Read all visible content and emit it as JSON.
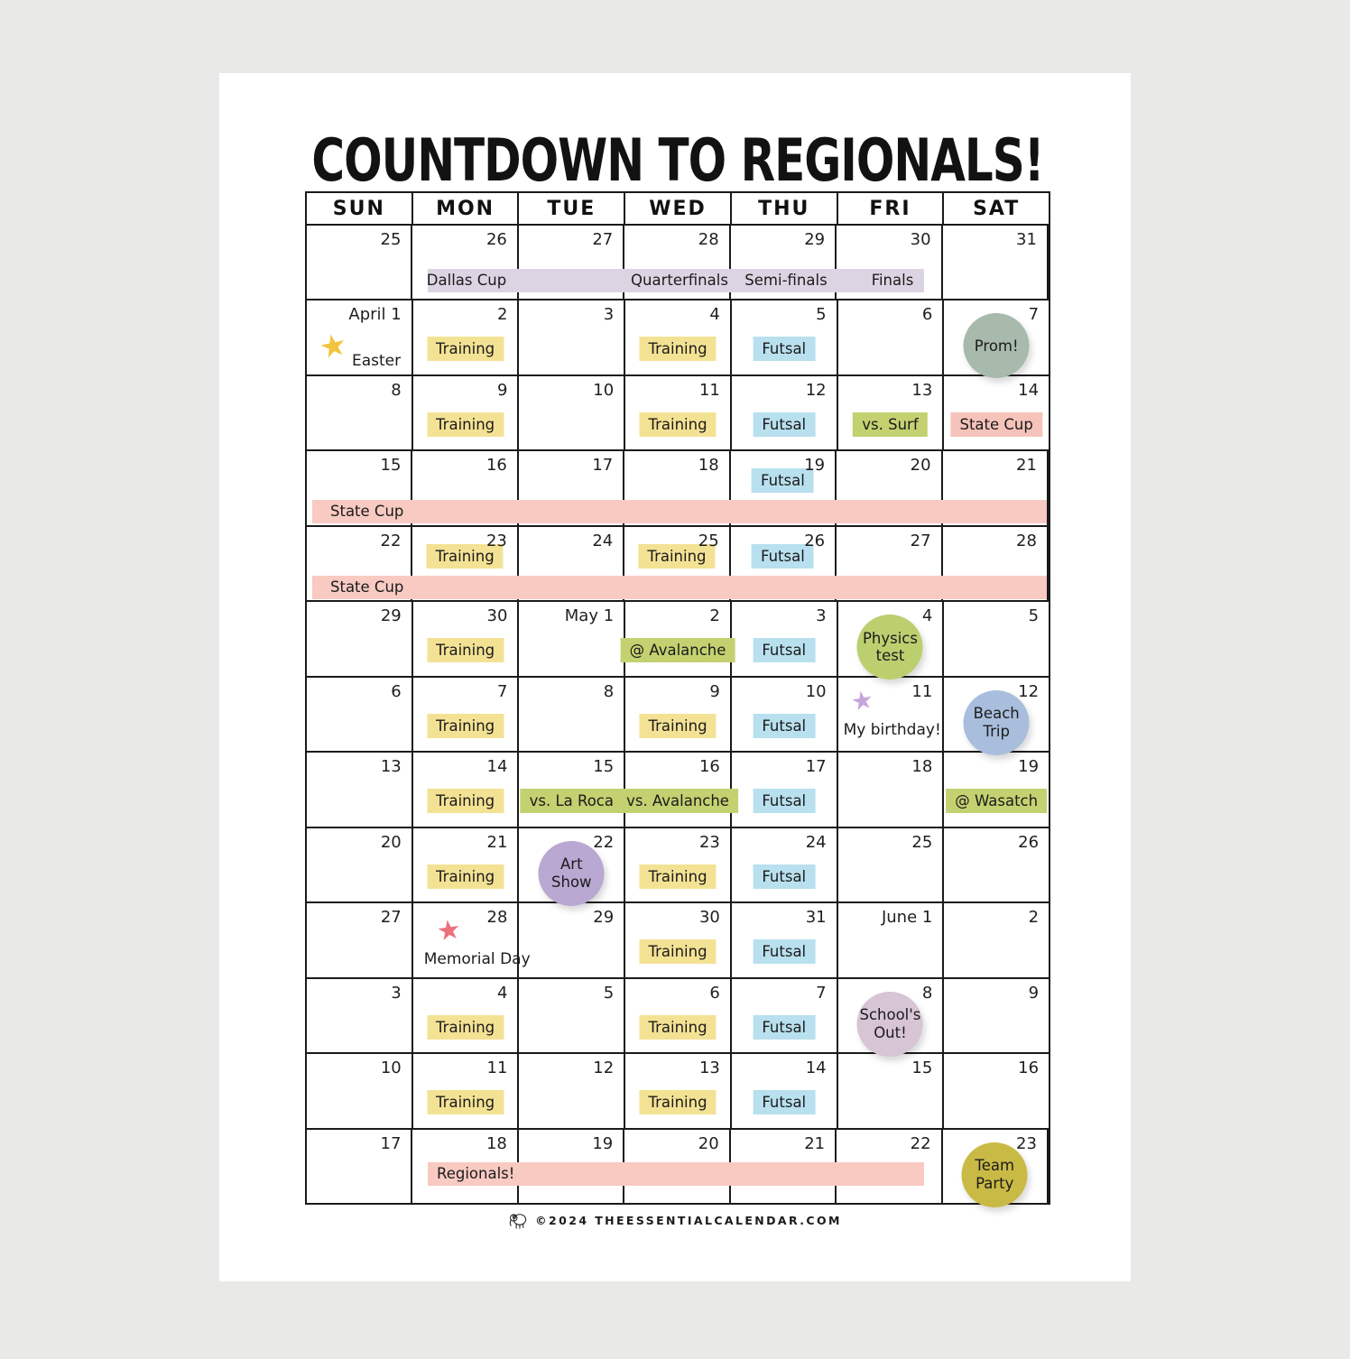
{
  "page": {
    "title": "COUNTDOWN TO REGIONALS!",
    "footer": {
      "copyright": "©2024 THEESSENTIALCALENDAR.COM",
      "logo_icon": "elephant-icon"
    }
  },
  "colors": {
    "background": "#e9e9e7",
    "page": "#ffffff",
    "ink": "#1b1b1b",
    "tag": {
      "yellow": "#f4e294",
      "blue": "#b8e0ee",
      "green": "#c3d170",
      "pink": "#f6c3ba"
    },
    "band": {
      "purple": "#ddd4e3",
      "pink": "#f8cac2"
    },
    "circle": {
      "sage": "#a7baac",
      "green": "#bccf6f",
      "periwinkle": "#a9bedd",
      "purple": "#b9a8d1",
      "mauve": "#d7c4d5",
      "mustard": "#c9ba45"
    },
    "star": {
      "gold": "#f2c33c",
      "purple": "#c6a6dd",
      "red": "#ec6f7c"
    }
  },
  "calendar": {
    "weekday_headers": [
      "SUN",
      "MON",
      "TUE",
      "WED",
      "THU",
      "FRI",
      "SAT"
    ],
    "weeks": [
      {
        "days": [
          {
            "date": "25"
          },
          {
            "date": "26"
          },
          {
            "date": "27"
          },
          {
            "date": "28"
          },
          {
            "date": "29"
          },
          {
            "date": "30"
          },
          {
            "date": "31"
          }
        ],
        "bands": [
          {
            "color": "purple",
            "pos": "mid",
            "start": 1,
            "end": 5,
            "labels": [
              {
                "text": "Dallas Cup",
                "col": 1
              },
              {
                "text": "Quarterfinals",
                "col": 3
              },
              {
                "text": "Semi-finals",
                "col": 4
              },
              {
                "text": "Finals",
                "col": 5
              }
            ]
          }
        ]
      },
      {
        "days": [
          {
            "date": "April 1",
            "events": [
              {
                "type": "star",
                "variant": "easter",
                "color": "gold",
                "text": "Easter"
              }
            ]
          },
          {
            "date": "2",
            "events": [
              {
                "type": "tag",
                "color": "yellow",
                "text": "Training"
              }
            ]
          },
          {
            "date": "3"
          },
          {
            "date": "4",
            "events": [
              {
                "type": "tag",
                "color": "yellow",
                "text": "Training"
              }
            ]
          },
          {
            "date": "5",
            "events": [
              {
                "type": "tag",
                "color": "blue",
                "text": "Futsal"
              }
            ]
          },
          {
            "date": "6"
          },
          {
            "date": "7",
            "events": [
              {
                "type": "circle",
                "color": "sage",
                "lines": [
                  "Prom!"
                ]
              }
            ]
          }
        ]
      },
      {
        "days": [
          {
            "date": "8"
          },
          {
            "date": "9",
            "events": [
              {
                "type": "tag",
                "color": "yellow",
                "text": "Training"
              }
            ]
          },
          {
            "date": "10"
          },
          {
            "date": "11",
            "events": [
              {
                "type": "tag",
                "color": "yellow",
                "text": "Training"
              }
            ]
          },
          {
            "date": "12",
            "events": [
              {
                "type": "tag",
                "color": "blue",
                "text": "Futsal"
              }
            ]
          },
          {
            "date": "13",
            "events": [
              {
                "type": "tag",
                "color": "green",
                "text": "vs. Surf"
              }
            ]
          },
          {
            "date": "14",
            "events": [
              {
                "type": "tag",
                "color": "pink",
                "text": "State Cup"
              }
            ]
          }
        ]
      },
      {
        "days": [
          {
            "date": "15"
          },
          {
            "date": "16"
          },
          {
            "date": "17"
          },
          {
            "date": "18"
          },
          {
            "date": "19",
            "events": [
              {
                "type": "tag",
                "color": "blue",
                "text": "Futsal",
                "pos": "high"
              }
            ]
          },
          {
            "date": "20"
          },
          {
            "date": "21"
          }
        ],
        "bands": [
          {
            "color": "pink",
            "pos": "low",
            "start": 0,
            "end": 6,
            "labels": [
              {
                "text": "State Cup",
                "col": 0,
                "align": "left"
              }
            ]
          }
        ]
      },
      {
        "days": [
          {
            "date": "22"
          },
          {
            "date": "23",
            "events": [
              {
                "type": "tag",
                "color": "yellow",
                "text": "Training",
                "pos": "high"
              }
            ]
          },
          {
            "date": "24"
          },
          {
            "date": "25",
            "events": [
              {
                "type": "tag",
                "color": "yellow",
                "text": "Training",
                "pos": "high"
              }
            ]
          },
          {
            "date": "26",
            "events": [
              {
                "type": "tag",
                "color": "blue",
                "text": "Futsal",
                "pos": "high"
              }
            ]
          },
          {
            "date": "27"
          },
          {
            "date": "28"
          }
        ],
        "bands": [
          {
            "color": "pink",
            "pos": "low",
            "start": 0,
            "end": 6,
            "labels": [
              {
                "text": "State Cup",
                "col": 0,
                "align": "left"
              }
            ]
          }
        ]
      },
      {
        "days": [
          {
            "date": "29"
          },
          {
            "date": "30",
            "events": [
              {
                "type": "tag",
                "color": "yellow",
                "text": "Training"
              }
            ]
          },
          {
            "date": "May 1"
          },
          {
            "date": "2",
            "events": [
              {
                "type": "tag",
                "color": "green",
                "text": "@ Avalanche"
              }
            ]
          },
          {
            "date": "3",
            "events": [
              {
                "type": "tag",
                "color": "blue",
                "text": "Futsal"
              }
            ]
          },
          {
            "date": "4",
            "events": [
              {
                "type": "circle",
                "color": "green",
                "lines": [
                  "Physics",
                  "test"
                ]
              }
            ]
          },
          {
            "date": "5"
          }
        ]
      },
      {
        "days": [
          {
            "date": "6"
          },
          {
            "date": "7",
            "events": [
              {
                "type": "tag",
                "color": "yellow",
                "text": "Training"
              }
            ]
          },
          {
            "date": "8"
          },
          {
            "date": "9",
            "events": [
              {
                "type": "tag",
                "color": "yellow",
                "text": "Training"
              }
            ]
          },
          {
            "date": "10",
            "events": [
              {
                "type": "tag",
                "color": "blue",
                "text": "Futsal"
              }
            ]
          },
          {
            "date": "11",
            "events": [
              {
                "type": "star",
                "variant": "birthday",
                "color": "purple",
                "text": "My birthday!"
              }
            ]
          },
          {
            "date": "12",
            "events": [
              {
                "type": "circle",
                "color": "periwinkle",
                "lines": [
                  "Beach",
                  "Trip"
                ]
              }
            ]
          }
        ]
      },
      {
        "days": [
          {
            "date": "13"
          },
          {
            "date": "14",
            "events": [
              {
                "type": "tag",
                "color": "yellow",
                "text": "Training"
              }
            ]
          },
          {
            "date": "15",
            "events": [
              {
                "type": "tag",
                "color": "green",
                "text": "vs. La Roca"
              }
            ]
          },
          {
            "date": "16",
            "events": [
              {
                "type": "tag",
                "color": "green",
                "text": "vs. Avalanche"
              }
            ]
          },
          {
            "date": "17",
            "events": [
              {
                "type": "tag",
                "color": "blue",
                "text": "Futsal"
              }
            ]
          },
          {
            "date": "18"
          },
          {
            "date": "19",
            "events": [
              {
                "type": "tag",
                "color": "green",
                "text": "@ Wasatch"
              }
            ]
          }
        ]
      },
      {
        "days": [
          {
            "date": "20"
          },
          {
            "date": "21",
            "events": [
              {
                "type": "tag",
                "color": "yellow",
                "text": "Training"
              }
            ]
          },
          {
            "date": "22",
            "events": [
              {
                "type": "circle",
                "color": "purple",
                "lines": [
                  "Art",
                  "Show"
                ]
              }
            ]
          },
          {
            "date": "23",
            "events": [
              {
                "type": "tag",
                "color": "yellow",
                "text": "Training"
              }
            ]
          },
          {
            "date": "24",
            "events": [
              {
                "type": "tag",
                "color": "blue",
                "text": "Futsal"
              }
            ]
          },
          {
            "date": "25"
          },
          {
            "date": "26"
          }
        ]
      },
      {
        "days": [
          {
            "date": "27"
          },
          {
            "date": "28",
            "events": [
              {
                "type": "star",
                "variant": "memorial",
                "color": "red",
                "text": "Memorial Day"
              }
            ]
          },
          {
            "date": "29"
          },
          {
            "date": "30",
            "events": [
              {
                "type": "tag",
                "color": "yellow",
                "text": "Training"
              }
            ]
          },
          {
            "date": "31",
            "events": [
              {
                "type": "tag",
                "color": "blue",
                "text": "Futsal"
              }
            ]
          },
          {
            "date": "June 1"
          },
          {
            "date": "2"
          }
        ]
      },
      {
        "days": [
          {
            "date": "3"
          },
          {
            "date": "4",
            "events": [
              {
                "type": "tag",
                "color": "yellow",
                "text": "Training"
              }
            ]
          },
          {
            "date": "5"
          },
          {
            "date": "6",
            "events": [
              {
                "type": "tag",
                "color": "yellow",
                "text": "Training"
              }
            ]
          },
          {
            "date": "7",
            "events": [
              {
                "type": "tag",
                "color": "blue",
                "text": "Futsal"
              }
            ]
          },
          {
            "date": "8",
            "events": [
              {
                "type": "circle",
                "color": "mauve",
                "lines": [
                  "School's",
                  "Out!"
                ]
              }
            ]
          },
          {
            "date": "9"
          }
        ]
      },
      {
        "days": [
          {
            "date": "10"
          },
          {
            "date": "11",
            "events": [
              {
                "type": "tag",
                "color": "yellow",
                "text": "Training"
              }
            ]
          },
          {
            "date": "12"
          },
          {
            "date": "13",
            "events": [
              {
                "type": "tag",
                "color": "yellow",
                "text": "Training"
              }
            ]
          },
          {
            "date": "14",
            "events": [
              {
                "type": "tag",
                "color": "blue",
                "text": "Futsal"
              }
            ]
          },
          {
            "date": "15"
          },
          {
            "date": "16"
          }
        ]
      },
      {
        "days": [
          {
            "date": "17"
          },
          {
            "date": "18"
          },
          {
            "date": "19"
          },
          {
            "date": "20"
          },
          {
            "date": "21"
          },
          {
            "date": "22"
          },
          {
            "date": "23",
            "events": [
              {
                "type": "circle",
                "color": "mustard",
                "lines": [
                  "Team",
                  "Party"
                ]
              }
            ]
          }
        ],
        "bands": [
          {
            "color": "pink",
            "pos": "high",
            "start": 1,
            "end": 5,
            "labels": [
              {
                "text": "Regionals!",
                "col": 1,
                "align": "left"
              }
            ]
          }
        ]
      }
    ]
  }
}
